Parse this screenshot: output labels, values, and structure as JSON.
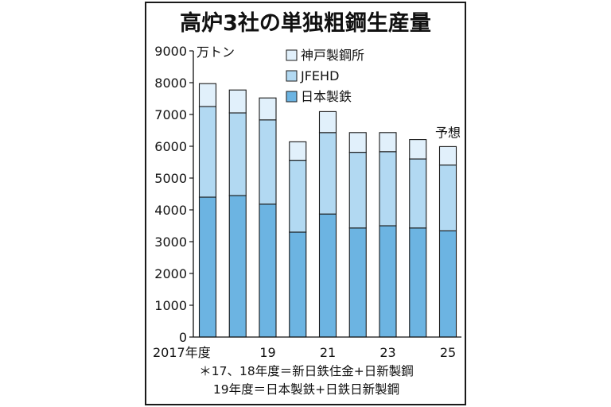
{
  "chart_data": {
    "type": "bar",
    "stacked": true,
    "title": "高炉3社の単独粗鋼生産量",
    "unit_label": "万トン",
    "ylim": [
      0,
      9000
    ],
    "yticks": [
      0,
      1000,
      2000,
      3000,
      4000,
      5000,
      6000,
      7000,
      8000,
      9000
    ],
    "categories": [
      "2017",
      "2018",
      "2019",
      "2020",
      "2021",
      "2022",
      "2023",
      "2024",
      "2025"
    ],
    "x_tick_labels": [
      "2017年度",
      "",
      "19",
      "",
      "21",
      "",
      "23",
      "",
      "25"
    ],
    "series": [
      {
        "name": "日本製鉄",
        "color": "#6cb4e2",
        "values": [
          4400,
          4450,
          4180,
          3300,
          3870,
          3430,
          3500,
          3430,
          3340
        ]
      },
      {
        "name": "JFEHD",
        "color": "#b2d9f2",
        "values": [
          2850,
          2600,
          2650,
          2260,
          2560,
          2380,
          2330,
          2170,
          2070
        ]
      },
      {
        "name": "神戸製鋼所",
        "color": "#e1f0fb",
        "values": [
          720,
          720,
          690,
          580,
          660,
          620,
          600,
          610,
          580
        ]
      }
    ],
    "annotations": [
      {
        "category": "2025",
        "text": "予想"
      }
    ],
    "legend": "top-right",
    "grid": false
  },
  "notes": [
    "＊17、18年度＝新日鉄住金+日新製鋼",
    "19年度＝日本製鉄+日鉄日新製鋼"
  ]
}
